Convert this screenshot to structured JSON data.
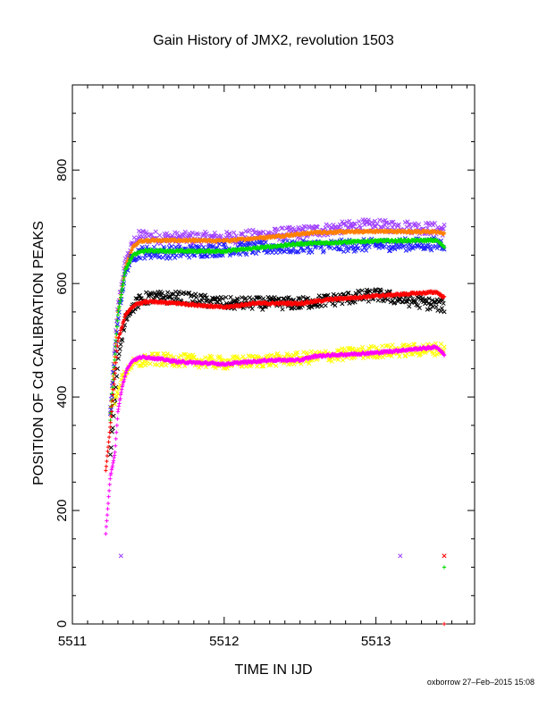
{
  "chart_data": {
    "type": "scatter",
    "title": "Gain History of JMX2, revolution 1503",
    "xlabel": "TIME IN IJD",
    "ylabel": "POSITION OF Cd CALIBRATION PEAKS",
    "xlim": [
      5511,
      5513.65
    ],
    "ylim": [
      0,
      950
    ],
    "xticks": [
      5511,
      5512,
      5513
    ],
    "yticks": [
      0,
      200,
      400,
      600,
      800
    ],
    "grid": false,
    "footer": "oxborrow 27–Feb–2015 15:08",
    "series": [
      {
        "color": "#a040ff",
        "marker": "x",
        "x": [
          5511.25,
          5511.3,
          5511.35,
          5511.4,
          5511.45,
          5511.5,
          5511.7,
          5512.0,
          5512.5,
          5512.9,
          5513.2,
          5513.45
        ],
        "y": [
          380,
          560,
          640,
          672,
          685,
          682,
          680,
          680,
          690,
          702,
          700,
          695
        ]
      },
      {
        "color": "#ff8000",
        "marker": "+",
        "x": [
          5511.25,
          5511.3,
          5511.35,
          5511.4,
          5511.45,
          5511.5,
          5511.7,
          5512.0,
          5512.3,
          5512.6,
          5513.0,
          5513.4,
          5513.45
        ],
        "y": [
          370,
          548,
          630,
          665,
          675,
          676,
          676,
          675,
          682,
          690,
          692,
          691,
          688
        ]
      },
      {
        "color": "#2020ff",
        "marker": "x",
        "x": [
          5511.25,
          5511.3,
          5511.35,
          5511.4,
          5511.45,
          5511.5,
          5511.7,
          5512.0,
          5512.5,
          5513.0,
          5513.45
        ],
        "y": [
          365,
          540,
          620,
          650,
          655,
          655,
          655,
          660,
          665,
          668,
          670
        ]
      },
      {
        "color": "#00dd00",
        "marker": "+",
        "x": [
          5511.25,
          5511.3,
          5511.35,
          5511.4,
          5511.45,
          5511.5,
          5511.7,
          5512.0,
          5512.5,
          5513.0,
          5513.4,
          5513.45
        ],
        "y": [
          360,
          545,
          625,
          650,
          656,
          658,
          657,
          657,
          670,
          675,
          676,
          665
        ]
      },
      {
        "color": "#000000",
        "marker": "x",
        "x": [
          5511.25,
          5511.3,
          5511.35,
          5511.4,
          5511.45,
          5511.5,
          5511.7,
          5512.0,
          5512.5,
          5513.0,
          5513.45
        ],
        "y": [
          300,
          460,
          540,
          560,
          570,
          575,
          575,
          565,
          565,
          580,
          560
        ]
      },
      {
        "color": "#ff0000",
        "marker": "+",
        "x": [
          5511.22,
          5511.25,
          5511.3,
          5511.35,
          5511.4,
          5511.45,
          5511.5,
          5511.7,
          5512.0,
          5512.2,
          5512.5,
          5512.7,
          5513.0,
          5513.4,
          5513.45
        ],
        "y": [
          270,
          350,
          500,
          545,
          560,
          566,
          568,
          565,
          558,
          565,
          565,
          572,
          578,
          585,
          575
        ]
      },
      {
        "color": "#ffff00",
        "marker": "x",
        "x": [
          5511.28,
          5511.32,
          5511.38,
          5511.45,
          5511.5,
          5511.7,
          5512.0,
          5512.5,
          5513.0,
          5513.45
        ],
        "y": [
          390,
          430,
          455,
          462,
          466,
          465,
          460,
          468,
          480,
          485
        ]
      },
      {
        "color": "#ff00ff",
        "marker": "+",
        "x": [
          5511.22,
          5511.25,
          5511.28,
          5511.3,
          5511.33,
          5511.36,
          5511.4,
          5511.45,
          5511.5,
          5511.7,
          5512.0,
          5512.3,
          5512.5,
          5512.6,
          5513.0,
          5513.4,
          5513.45
        ],
        "y": [
          160,
          260,
          300,
          375,
          420,
          450,
          465,
          470,
          470,
          462,
          458,
          465,
          465,
          472,
          478,
          488,
          475
        ]
      }
    ],
    "outliers": [
      {
        "color": "#a040ff",
        "marker": "x",
        "x": 5511.32,
        "y": 120
      },
      {
        "color": "#a040ff",
        "marker": "x",
        "x": 5513.16,
        "y": 120
      },
      {
        "color": "#ff0000",
        "marker": "x",
        "x": 5513.45,
        "y": 120
      },
      {
        "color": "#00dd00",
        "marker": "+",
        "x": 5513.45,
        "y": 100
      },
      {
        "color": "#ff0000",
        "marker": "+",
        "x": 5513.45,
        "y": 0
      }
    ]
  }
}
